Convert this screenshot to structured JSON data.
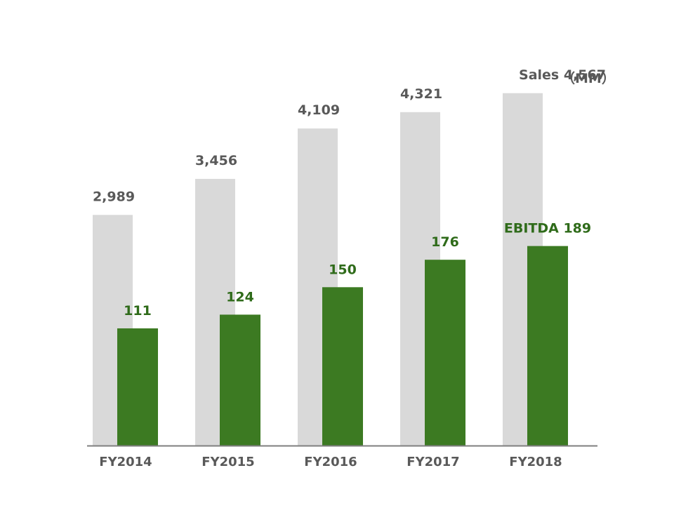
{
  "chart_data": {
    "type": "bar",
    "categories": [
      "FY2014",
      "FY2015",
      "FY2016",
      "FY2017",
      "FY2018"
    ],
    "series": [
      {
        "name": "Sales",
        "values": [
          2989,
          3456,
          4109,
          4321,
          4567
        ],
        "labels": [
          "2,989",
          "3,456",
          "4,109",
          "4,321",
          "Sales 4,567"
        ],
        "color": "#d9d9d9",
        "label_color": "#595959"
      },
      {
        "name": "EBITDA",
        "values": [
          111,
          124,
          150,
          176,
          189
        ],
        "labels": [
          "111",
          "124",
          "150",
          "176",
          "EBITDA 189"
        ],
        "color": "#3c7a22",
        "label_color": "#2f6b1a"
      }
    ],
    "unit_label": "（MM）",
    "axis_color": "#7f7f7f",
    "grid": false,
    "legend": "none"
  }
}
